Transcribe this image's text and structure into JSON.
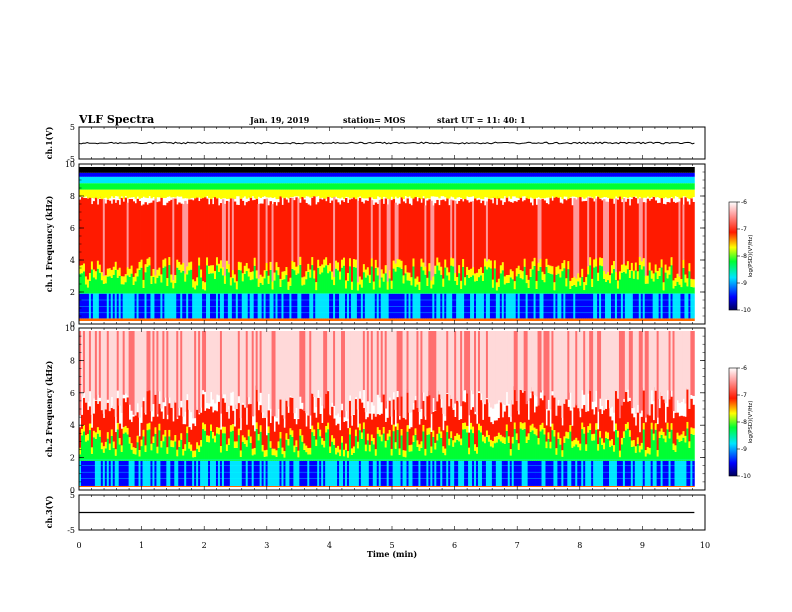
{
  "header": {
    "title": "VLF Spectra",
    "date": "Jan. 19, 2019",
    "station": "station= MOS",
    "start": "start  UT =   11: 40: 1"
  },
  "chart_data": [
    {
      "type": "line",
      "name": "ch1-waveform",
      "ylabel": "ch.1(V)",
      "ylim": [
        -5,
        5
      ],
      "yticks": [
        "5",
        "-5"
      ],
      "x": [
        0,
        9.83
      ],
      "y": [
        0,
        0
      ]
    },
    {
      "type": "heatmap",
      "name": "ch1-spectrogram",
      "ylabel": "ch.1  Frequency (kHz)",
      "ylim": [
        0,
        10
      ],
      "yticks": [
        "0",
        "2",
        "4",
        "6",
        "8",
        "10"
      ],
      "xlim": [
        0,
        10
      ],
      "data_end_min": 9.83,
      "colorbar": {
        "label": "log(PSD)(V²/Hz)",
        "range": [
          -10,
          -6
        ],
        "ticks": [
          "-6",
          "-7",
          "-8",
          "-9",
          "-10"
        ]
      }
    },
    {
      "type": "heatmap",
      "name": "ch2-spectrogram",
      "ylabel": "ch.2  Frequency (kHz)",
      "ylim": [
        0,
        10
      ],
      "yticks": [
        "0",
        "2",
        "4",
        "6",
        "8",
        "10"
      ],
      "xlim": [
        0,
        10
      ],
      "data_end_min": 9.83,
      "colorbar": {
        "label": "log(PSD)(V²/Hz)",
        "range": [
          -10,
          -6
        ],
        "ticks": [
          "-6",
          "-7",
          "-8",
          "-9",
          "-10"
        ]
      }
    },
    {
      "type": "line",
      "name": "ch3-waveform",
      "ylabel": "ch.3(V)",
      "ylim": [
        -5,
        5
      ],
      "yticks": [
        "5",
        "-5"
      ],
      "x": [
        0,
        9.83
      ],
      "y": [
        0,
        0
      ]
    }
  ],
  "xaxis": {
    "label": "Time (min)",
    "ticks": [
      "0",
      "1",
      "2",
      "3",
      "4",
      "5",
      "6",
      "7",
      "8",
      "9",
      "10"
    ],
    "range": [
      0,
      10
    ]
  },
  "colors": {
    "black": "#000000",
    "blue": "#0000ff",
    "cyan": "#00e5ff",
    "green": "#00ff33",
    "yellow": "#ffff00",
    "red": "#ff1a00"
  }
}
